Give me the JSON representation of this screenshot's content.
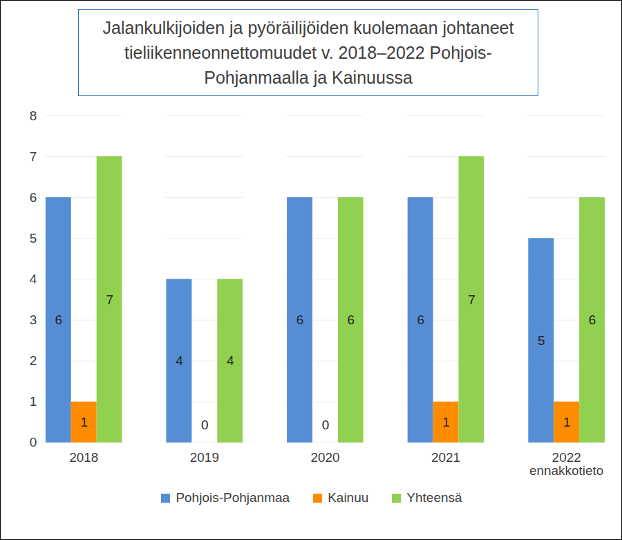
{
  "chart_data": {
    "type": "bar",
    "title": "Jalankulkijoiden ja pyöräilijöiden kuolemaan johtaneet tieliikenneonnettomuudet v. 2018–2022 Pohjois-Pohjanmaalla ja Kainuussa",
    "categories": [
      "2018",
      "2019",
      "2020",
      "2021",
      "2022\nennakkotieto"
    ],
    "series": [
      {
        "name": "Pohjois-Pohjanmaa",
        "color": "#558ed5",
        "values": [
          6,
          4,
          6,
          6,
          5
        ]
      },
      {
        "name": "Kainuu",
        "color": "#ff8c00",
        "values": [
          1,
          0,
          0,
          1,
          1
        ]
      },
      {
        "name": "Yhteensä",
        "color": "#92d050",
        "values": [
          7,
          4,
          6,
          7,
          6
        ]
      }
    ],
    "ylim": [
      0,
      8
    ],
    "yticks": [
      0,
      1,
      2,
      3,
      4,
      5,
      6,
      7,
      8
    ],
    "grid": true,
    "data_labels": true,
    "legend": "bottom"
  }
}
